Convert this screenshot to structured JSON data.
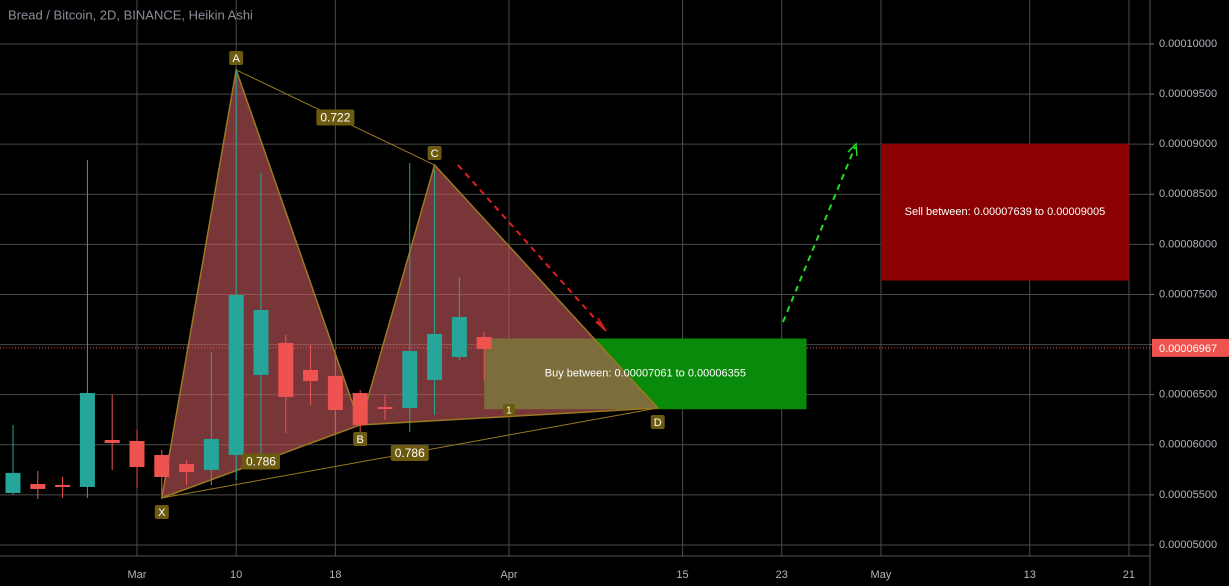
{
  "chart_data": {
    "type": "candlestick",
    "title": "Bread / Bitcoin, 2D, BINANCE, Heikin Ashi",
    "xlim": [
      -0.524,
      45.85
    ],
    "ylim": [
      4.89e-05,
      0.00010439
    ],
    "grid": true,
    "up_color": "#26a69a",
    "down_color": "#ef5350",
    "xticks": [
      {
        "value": 5,
        "label": "Mar"
      },
      {
        "value": 9,
        "label": "10"
      },
      {
        "value": 13,
        "label": "18"
      },
      {
        "value": 20,
        "label": "Apr"
      },
      {
        "value": 27,
        "label": "15"
      },
      {
        "value": 31,
        "label": "23"
      },
      {
        "value": 35,
        "label": "May"
      },
      {
        "value": 41,
        "label": "13"
      },
      {
        "value": 45,
        "label": "21"
      }
    ],
    "yticks": [
      {
        "value": 5e-05,
        "label": "0.00005000"
      },
      {
        "value": 5.5e-05,
        "label": "0.00005500"
      },
      {
        "value": 6e-05,
        "label": "0.00006000"
      },
      {
        "value": 6.5e-05,
        "label": "0.00006500"
      },
      {
        "value": 7e-05,
        "label": "0.00007000"
      },
      {
        "value": 7.5e-05,
        "label": "0.00007500"
      },
      {
        "value": 8e-05,
        "label": "0.00008000"
      },
      {
        "value": 8.5e-05,
        "label": "0.00008500"
      },
      {
        "value": 9e-05,
        "label": "0.00009000"
      },
      {
        "value": 9.5e-05,
        "label": "0.00009500"
      },
      {
        "value": 0.0001,
        "label": "0.00010000"
      }
    ],
    "open": [
      5.519e-05,
      5.609e-05,
      5.599e-05,
      5.579e-05,
      6.048e-05,
      6.038e-05,
      5.898e-05,
      5.808e-05,
      5.749e-05,
      5.898e-05,
      6.697e-05,
      7.016e-05,
      6.747e-05,
      6.687e-05,
      6.517e-05,
      6.377e-05,
      6.367e-05,
      6.647e-05,
      6.876e-05,
      7.076e-05
    ],
    "high": [
      6.198e-05,
      5.739e-05,
      5.679e-05,
      8.842e-05,
      6.497e-05,
      6.148e-05,
      5.948e-05,
      5.848e-05,
      6.926e-05,
      9.741e-05,
      8.713e-05,
      7.096e-05,
      6.996e-05,
      6.896e-05,
      6.547e-05,
      6.497e-05,
      8.812e-05,
      8.743e-05,
      7.675e-05,
      7.126e-05
    ],
    "low": [
      5.499e-05,
      5.459e-05,
      5.469e-05,
      5.469e-05,
      5.749e-05,
      5.569e-05,
      5.499e-05,
      5.599e-05,
      5.599e-05,
      5.649e-05,
      5.749e-05,
      6.118e-05,
      6.397e-05,
      6.098e-05,
      6.128e-05,
      6.248e-05,
      6.128e-05,
      6.297e-05,
      6.846e-05,
      6.647e-05
    ],
    "close": [
      5.719e-05,
      5.559e-05,
      5.579e-05,
      6.517e-05,
      6.018e-05,
      5.778e-05,
      5.679e-05,
      5.729e-05,
      6.058e-05,
      7.495e-05,
      7.345e-05,
      6.477e-05,
      6.637e-05,
      6.347e-05,
      6.198e-05,
      6.357e-05,
      6.936e-05,
      7.106e-05,
      7.275e-05,
      6.956e-05
    ],
    "last": {
      "value": 6.967e-05,
      "label": "0.00006967"
    },
    "pattern": {
      "points": [
        {
          "label": "X",
          "x": 6,
          "y": 5.469e-05
        },
        {
          "label": "A",
          "x": 9,
          "y": 9.741e-05
        },
        {
          "label": "B",
          "x": 14,
          "y": 6.198e-05
        },
        {
          "label": "C",
          "x": 17,
          "y": 8.792e-05
        },
        {
          "label": "D",
          "x": 26,
          "y": 6.367e-05
        }
      ],
      "ratios": {
        "XB": 0.786,
        "AC": 0.722,
        "XD": 0.786
      }
    },
    "annotation": {
      "text": "1",
      "x": 20,
      "y": 6.35e-05
    },
    "zones": [
      {
        "text": "Buy between: 0.00007061 to 0.00006355",
        "top": 7.061e-05,
        "bottom": 6.355e-05,
        "x": [
          19,
          32
        ],
        "color": "#0a8a0a"
      },
      {
        "text": "Sell between: 0.00007639 to 0.00009005",
        "top": 9.005e-05,
        "bottom": 7.639e-05,
        "x": [
          35,
          45
        ],
        "color": "#8b0000"
      }
    ]
  }
}
